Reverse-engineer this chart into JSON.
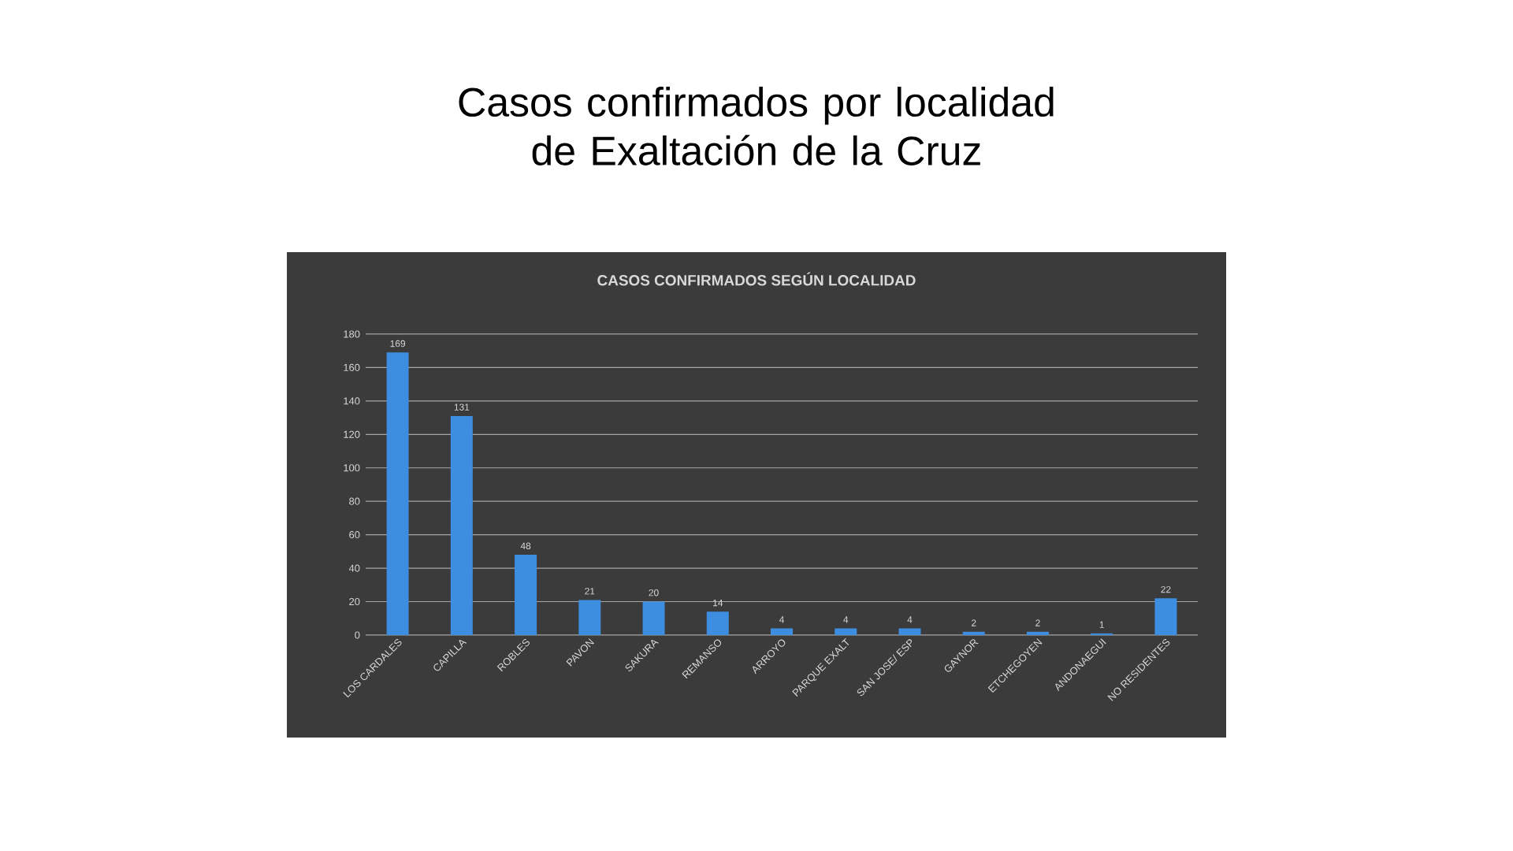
{
  "chart_data": {
    "type": "bar",
    "title": "Casos confirmados por localidad de Exaltación de la Cruz",
    "subtitle": "CASOS  CONFIRMADOS  SEGÚN  LOCALIDAD",
    "categories": [
      "LOS CARDALES",
      "CAPILLA",
      "ROBLES",
      "PAVON",
      "SAKURA",
      "REMANSO",
      "ARROYO",
      "PARQUE EXALT",
      "SAN JOSE/ ESP",
      "GAYNOR",
      "ETCHEGOYEN",
      "ANDONAEGUI",
      "NO RESIDENTES"
    ],
    "values": [
      169,
      131,
      48,
      21,
      20,
      14,
      4,
      4,
      4,
      2,
      2,
      1,
      22
    ],
    "color": "#3d8ee0",
    "ylim": [
      0,
      180
    ],
    "yticks": [
      0,
      20,
      40,
      60,
      80,
      100,
      120,
      140,
      160,
      180
    ],
    "grid": "y",
    "data_labels": true
  }
}
